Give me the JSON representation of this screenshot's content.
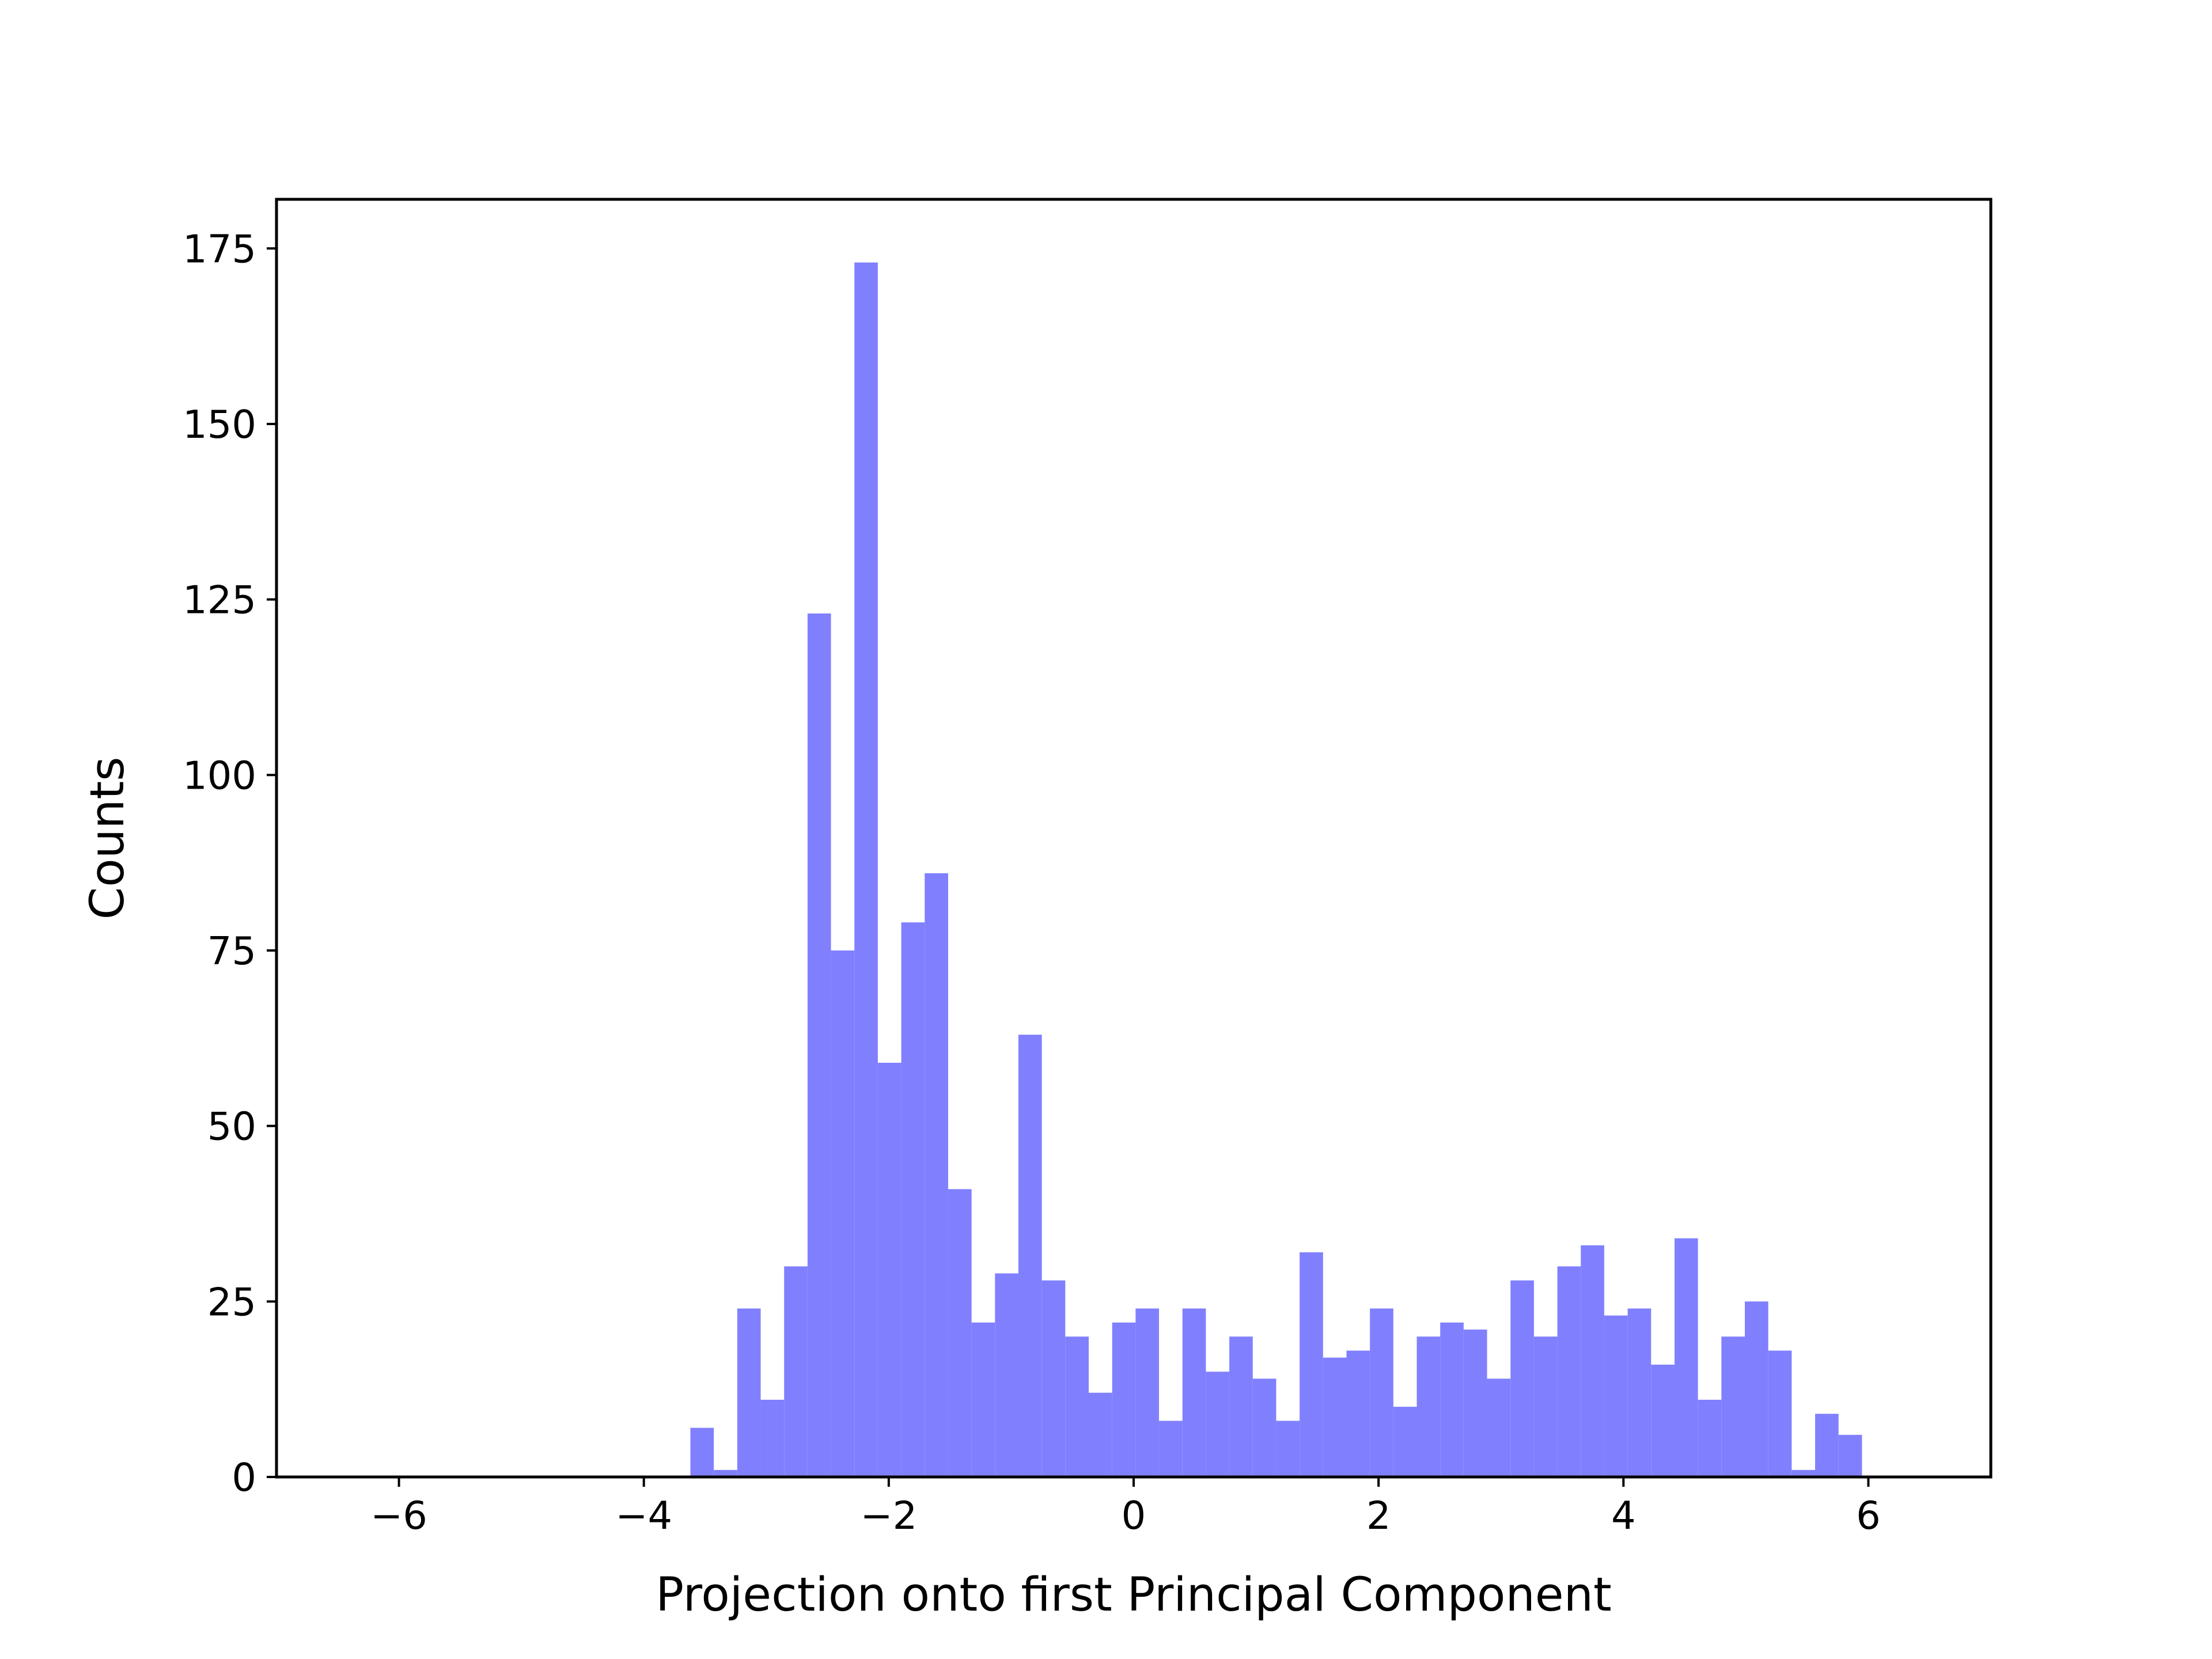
{
  "chart_data": {
    "type": "bar",
    "subtype": "histogram",
    "xlabel": "Projection onto first Principal Component",
    "ylabel": "Counts",
    "xlim": [
      -7,
      7
    ],
    "ylim": [
      0,
      182
    ],
    "xticks": [
      -6,
      -4,
      -2,
      0,
      2,
      4,
      6
    ],
    "xtick_labels": [
      "−6",
      "−4",
      "−2",
      "0",
      "2",
      "4",
      "6"
    ],
    "yticks": [
      0,
      25,
      50,
      75,
      100,
      125,
      150,
      175
    ],
    "ytick_labels": [
      "0",
      "25",
      "50",
      "75",
      "100",
      "125",
      "150",
      "175"
    ],
    "bin_start": -3.62,
    "bin_width": 0.19136,
    "values": [
      7,
      1,
      24,
      11,
      30,
      123,
      75,
      173,
      59,
      79,
      86,
      41,
      22,
      29,
      63,
      28,
      20,
      12,
      22,
      24,
      8,
      24,
      15,
      20,
      14,
      8,
      32,
      17,
      18,
      24,
      10,
      20,
      22,
      21,
      14,
      28,
      20,
      30,
      33,
      23,
      24,
      16,
      34,
      11,
      20,
      25,
      18,
      1,
      9,
      6
    ],
    "bar_color": "#8080ff",
    "grid": false,
    "legend": "none"
  }
}
